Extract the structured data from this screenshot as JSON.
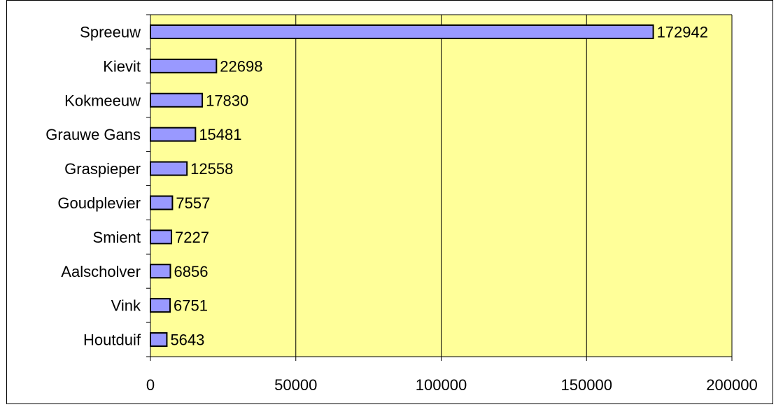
{
  "chart_data": {
    "type": "bar",
    "orientation": "horizontal",
    "categories": [
      "Spreeuw",
      "Kievit",
      "Kokmeeuw",
      "Grauwe Gans",
      "Graspieper",
      "Goudplevier",
      "Smient",
      "Aalscholver",
      "Vink",
      "Houtduif"
    ],
    "values": [
      172942,
      22698,
      17830,
      15481,
      12558,
      7557,
      7227,
      6856,
      6751,
      5643
    ],
    "xticks": [
      "0",
      "50000",
      "100000",
      "150000",
      "200000"
    ],
    "xlim": [
      0,
      200000
    ],
    "grid": true,
    "legend": false,
    "colors": {
      "bar_fill": "#9999ff",
      "bar_stroke": "#000000",
      "plot_background": "#ffff99",
      "gridline": "#000000"
    }
  }
}
